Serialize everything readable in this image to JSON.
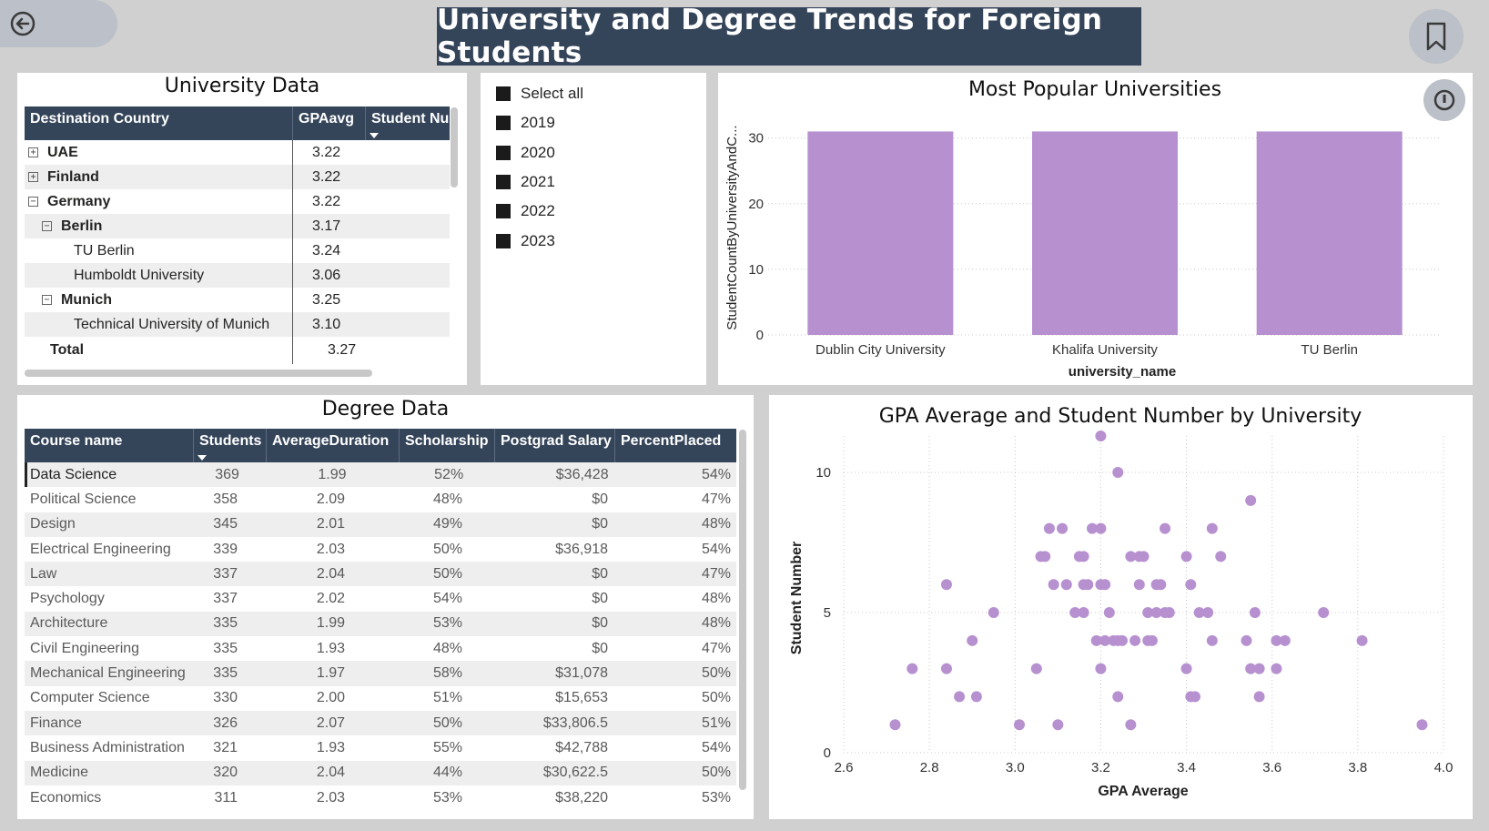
{
  "header": {
    "title": "University and Degree Trends for Foreign Students",
    "back_icon": "back-arrow-circle-icon",
    "bookmark_icon": "bookmark-icon"
  },
  "university_data": {
    "title": "University Data",
    "columns": [
      "Destination Country",
      "GPAavg",
      "Student Nu"
    ],
    "rows": [
      {
        "label": "UAE",
        "gpa": "3.22",
        "level": 0,
        "expander": "+"
      },
      {
        "label": "Finland",
        "gpa": "3.22",
        "level": 0,
        "expander": "+"
      },
      {
        "label": "Germany",
        "gpa": "3.22",
        "level": 0,
        "expander": "−"
      },
      {
        "label": "Berlin",
        "gpa": "3.17",
        "level": 1,
        "expander": "−"
      },
      {
        "label": "TU Berlin",
        "gpa": "3.24",
        "level": 2,
        "expander": ""
      },
      {
        "label": "Humboldt University",
        "gpa": "3.06",
        "level": 2,
        "expander": ""
      },
      {
        "label": "Munich",
        "gpa": "3.25",
        "level": 1,
        "expander": "−"
      },
      {
        "label": "Technical University of Munich",
        "gpa": "3.10",
        "level": 2,
        "expander": ""
      }
    ],
    "total_label": "Total",
    "total_gpa": "3.27"
  },
  "slicer": {
    "items": [
      "Select all",
      "2019",
      "2020",
      "2021",
      "2022",
      "2023"
    ]
  },
  "bar_chart": {
    "focus_icon": "focus-mode-icon",
    "chart_data": {
      "type": "bar",
      "title": "Most Popular Universities",
      "xlabel": "university_name",
      "ylabel": "StudentCountByUniversityAndC...",
      "categories": [
        "Dublin City University",
        "Khalifa University",
        "TU Berlin"
      ],
      "values": [
        31,
        31,
        31
      ],
      "ylim": [
        0,
        33
      ],
      "yticks": [
        0,
        10,
        20,
        30
      ],
      "color": "#b790d0",
      "grid": true
    }
  },
  "degree_data": {
    "title": "Degree Data",
    "columns": [
      "Course name",
      "Students",
      "AverageDuration",
      "Scholarship",
      "Postgrad Salary",
      "PercentPlaced"
    ],
    "rows": [
      [
        "Data Science",
        "369",
        "1.99",
        "52%",
        "$36,428",
        "54%"
      ],
      [
        "Political Science",
        "358",
        "2.09",
        "48%",
        "$0",
        "47%"
      ],
      [
        "Design",
        "345",
        "2.01",
        "49%",
        "$0",
        "48%"
      ],
      [
        "Electrical Engineering",
        "339",
        "2.03",
        "50%",
        "$36,918",
        "54%"
      ],
      [
        "Law",
        "337",
        "2.04",
        "50%",
        "$0",
        "47%"
      ],
      [
        "Psychology",
        "337",
        "2.02",
        "54%",
        "$0",
        "48%"
      ],
      [
        "Architecture",
        "335",
        "1.99",
        "53%",
        "$0",
        "48%"
      ],
      [
        "Civil Engineering",
        "335",
        "1.93",
        "48%",
        "$0",
        "47%"
      ],
      [
        "Mechanical Engineering",
        "335",
        "1.97",
        "58%",
        "$31,078",
        "50%"
      ],
      [
        "Computer Science",
        "330",
        "2.00",
        "51%",
        "$15,653",
        "50%"
      ],
      [
        "Finance",
        "326",
        "2.07",
        "50%",
        "$33,806.5",
        "51%"
      ],
      [
        "Business Administration",
        "321",
        "1.93",
        "55%",
        "$42,788",
        "54%"
      ],
      [
        "Medicine",
        "320",
        "2.04",
        "44%",
        "$30,622.5",
        "50%"
      ],
      [
        "Economics",
        "311",
        "2.03",
        "53%",
        "$38,220",
        "53%"
      ]
    ]
  },
  "scatter_chart": {
    "chart_data": {
      "type": "scatter",
      "title": "GPA Average and Student Number by University",
      "xlabel": "GPA Average",
      "ylabel": "Student Number",
      "xlim": [
        2.6,
        4.0
      ],
      "ylim": [
        0,
        11.3
      ],
      "xticks": [
        "2.6",
        "2.8",
        "3.0",
        "3.2",
        "3.4",
        "3.6",
        "3.8",
        "4.0"
      ],
      "yticks": [
        0,
        5,
        10
      ],
      "color": "#b790d0",
      "grid": true,
      "points": [
        [
          2.72,
          1
        ],
        [
          2.76,
          3
        ],
        [
          2.84,
          6
        ],
        [
          2.84,
          3
        ],
        [
          2.87,
          2
        ],
        [
          2.9,
          4
        ],
        [
          2.91,
          2
        ],
        [
          2.95,
          5
        ],
        [
          3.01,
          1
        ],
        [
          3.05,
          3
        ],
        [
          3.06,
          7
        ],
        [
          3.07,
          7
        ],
        [
          3.08,
          8
        ],
        [
          3.09,
          6
        ],
        [
          3.1,
          1
        ],
        [
          3.11,
          8
        ],
        [
          3.12,
          6
        ],
        [
          3.14,
          5
        ],
        [
          3.15,
          7
        ],
        [
          3.16,
          7
        ],
        [
          3.16,
          6
        ],
        [
          3.16,
          5
        ],
        [
          3.17,
          6
        ],
        [
          3.18,
          8
        ],
        [
          3.19,
          4
        ],
        [
          3.2,
          8
        ],
        [
          3.2,
          6
        ],
        [
          3.2,
          3
        ],
        [
          3.21,
          6
        ],
        [
          3.21,
          4
        ],
        [
          3.22,
          5
        ],
        [
          3.23,
          4
        ],
        [
          3.24,
          10
        ],
        [
          3.24,
          4
        ],
        [
          3.24,
          2
        ],
        [
          3.25,
          4
        ],
        [
          3.27,
          1
        ],
        [
          3.27,
          7
        ],
        [
          3.28,
          4
        ],
        [
          3.29,
          6
        ],
        [
          3.29,
          7
        ],
        [
          3.3,
          7
        ],
        [
          3.31,
          5
        ],
        [
          3.31,
          4
        ],
        [
          3.32,
          4
        ],
        [
          3.33,
          6
        ],
        [
          3.33,
          5
        ],
        [
          3.34,
          6
        ],
        [
          3.35,
          5
        ],
        [
          3.35,
          8
        ],
        [
          3.36,
          5
        ],
        [
          3.4,
          3
        ],
        [
          3.4,
          7
        ],
        [
          3.41,
          6
        ],
        [
          3.41,
          2
        ],
        [
          3.42,
          2
        ],
        [
          3.43,
          5
        ],
        [
          3.45,
          5
        ],
        [
          3.46,
          4
        ],
        [
          3.46,
          8
        ],
        [
          3.48,
          7
        ],
        [
          3.54,
          4
        ],
        [
          3.55,
          9
        ],
        [
          3.55,
          3
        ],
        [
          3.56,
          5
        ],
        [
          3.57,
          3
        ],
        [
          3.57,
          2
        ],
        [
          3.61,
          4
        ],
        [
          3.61,
          3
        ],
        [
          3.63,
          4
        ],
        [
          3.72,
          5
        ],
        [
          3.81,
          4
        ],
        [
          3.95,
          1
        ]
      ],
      "clipped_points": [
        [
          3.2,
          12
        ]
      ]
    }
  }
}
